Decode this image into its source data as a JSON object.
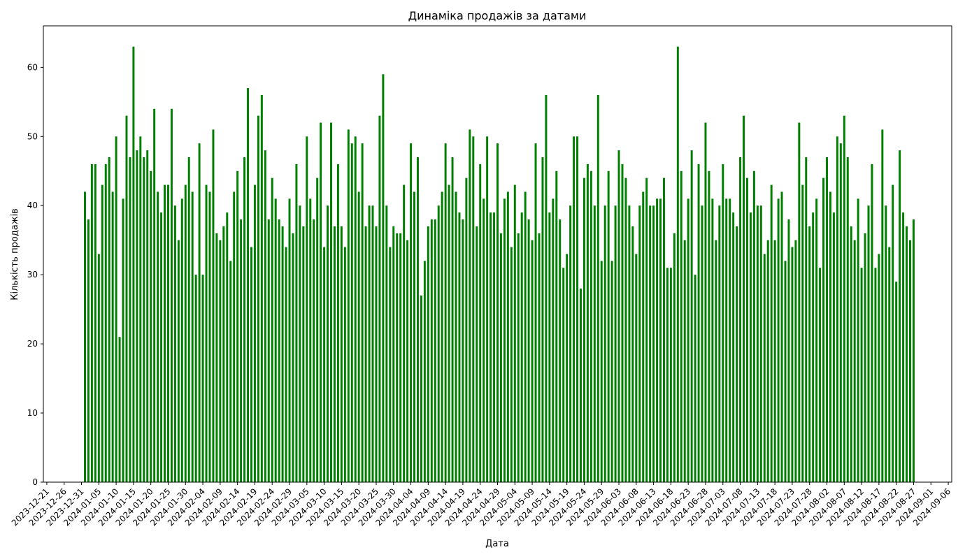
{
  "chart_data": {
    "type": "bar",
    "title": "Динаміка продажів за датами",
    "xlabel": "Дата",
    "ylabel": "Кількість продажів",
    "bar_color": "#008000",
    "ylim": [
      0,
      66
    ],
    "y_ticks": [
      0,
      10,
      20,
      30,
      40,
      50,
      60
    ],
    "x_range": [
      "2023-12-20",
      "2024-09-07"
    ],
    "x_ticks": [
      "2023-12-21",
      "2023-12-26",
      "2023-12-31",
      "2024-01-05",
      "2024-01-10",
      "2024-01-15",
      "2024-01-20",
      "2024-01-25",
      "2024-01-30",
      "2024-02-04",
      "2024-02-09",
      "2024-02-14",
      "2024-02-19",
      "2024-02-24",
      "2024-02-29",
      "2024-03-05",
      "2024-03-10",
      "2024-03-15",
      "2024-03-20",
      "2024-03-25",
      "2024-03-30",
      "2024-04-04",
      "2024-04-09",
      "2024-04-14",
      "2024-04-19",
      "2024-04-24",
      "2024-04-29",
      "2024-05-04",
      "2024-05-09",
      "2024-05-14",
      "2024-05-19",
      "2024-05-24",
      "2024-05-29",
      "2024-06-03",
      "2024-06-08",
      "2024-06-13",
      "2024-06-18",
      "2024-06-23",
      "2024-06-28",
      "2024-07-03",
      "2024-07-08",
      "2024-07-13",
      "2024-07-18",
      "2024-07-23",
      "2024-07-28",
      "2024-08-02",
      "2024-08-07",
      "2024-08-12",
      "2024-08-17",
      "2024-08-22",
      "2024-08-27",
      "2024-09-01",
      "2024-09-06"
    ],
    "start_date": "2024-01-01",
    "values": [
      42,
      38,
      46,
      46,
      33,
      43,
      46,
      47,
      42,
      50,
      21,
      41,
      53,
      47,
      63,
      48,
      50,
      47,
      48,
      45,
      54,
      42,
      39,
      43,
      43,
      54,
      40,
      35,
      41,
      43,
      47,
      42,
      30,
      49,
      30,
      43,
      42,
      51,
      36,
      35,
      37,
      39,
      32,
      42,
      45,
      38,
      47,
      57,
      34,
      43,
      53,
      56,
      48,
      38,
      44,
      41,
      38,
      37,
      34,
      41,
      36,
      46,
      40,
      37,
      50,
      41,
      38,
      44,
      52,
      34,
      40,
      52,
      37,
      46,
      37,
      34,
      51,
      49,
      50,
      42,
      49,
      37,
      40,
      40,
      37,
      53,
      59,
      40,
      34,
      37,
      36,
      36,
      43,
      35,
      49,
      42,
      47,
      27,
      32,
      37,
      38,
      38,
      40,
      42,
      49,
      43,
      47,
      42,
      39,
      38,
      44,
      51,
      50,
      37,
      46,
      41,
      50,
      39,
      39,
      49,
      36,
      41,
      42,
      34,
      43,
      36,
      39,
      42,
      38,
      35,
      49,
      36,
      47,
      56,
      39,
      41,
      45,
      38,
      31,
      33,
      40,
      50,
      50,
      28,
      44,
      46,
      45,
      40,
      56,
      32,
      40,
      45,
      32,
      40,
      48,
      46,
      44,
      40,
      37,
      33,
      40,
      42,
      44,
      40,
      40,
      41,
      41,
      44,
      31,
      31,
      36,
      63,
      45,
      35,
      41,
      48,
      30,
      46,
      40,
      52,
      45,
      41,
      35,
      40,
      46,
      41,
      41,
      39,
      37,
      47,
      53,
      44,
      39,
      45,
      40,
      40,
      33,
      35,
      43,
      35,
      41,
      42,
      32,
      38,
      34,
      35,
      52,
      43,
      47,
      37,
      39,
      41,
      31,
      44,
      47,
      42,
      39,
      50,
      49,
      53,
      47,
      37,
      35,
      41,
      31,
      36,
      40,
      46,
      31,
      33,
      51,
      40,
      34,
      43,
      29,
      48,
      39,
      37,
      35,
      38
    ]
  }
}
